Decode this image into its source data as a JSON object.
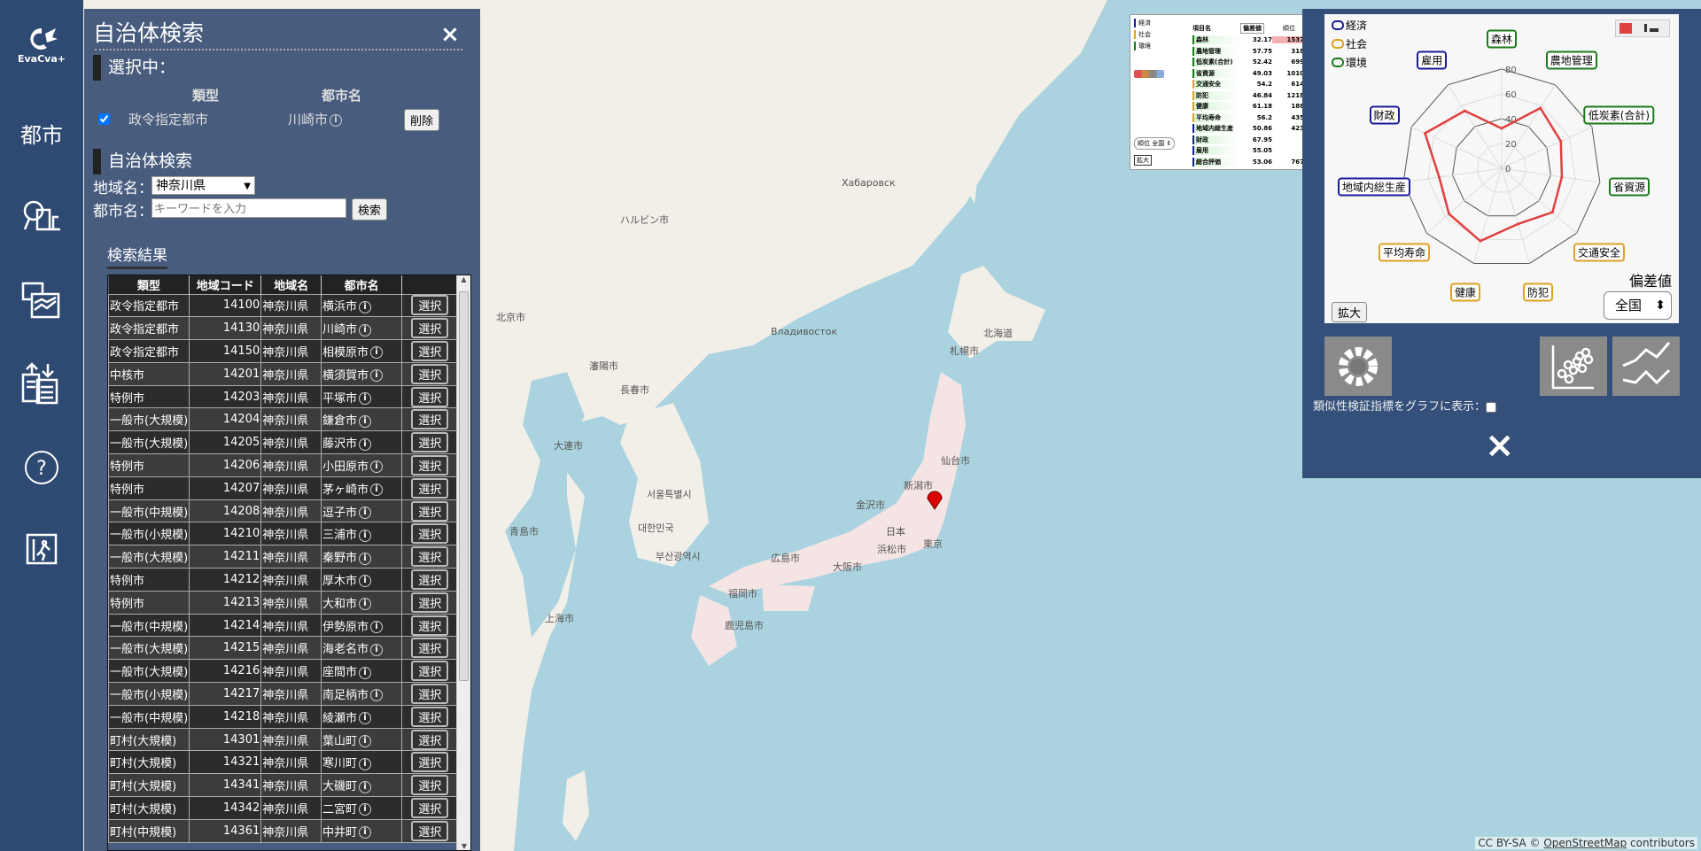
{
  "app": {
    "logo_text": "EvaCva+"
  },
  "sidebar": {
    "items": [
      {
        "label": "都市",
        "icon": "city-text"
      },
      {
        "icon": "city-search-icon"
      },
      {
        "icon": "chart-compare-icon"
      },
      {
        "icon": "import-export-icon"
      },
      {
        "icon": "help-icon"
      },
      {
        "icon": "exit-icon"
      }
    ]
  },
  "search_panel": {
    "title": "自治体検索",
    "close": "×",
    "selected": {
      "heading": "選択中：",
      "col_type": "類型",
      "col_city": "都市名",
      "type": "政令指定都市",
      "city": "川崎市",
      "remove_label": "削除",
      "checked": true
    },
    "search": {
      "heading": "自治体検索",
      "region_label": "地域名：",
      "region_value": "神奈川県",
      "city_label": "都市名：",
      "city_placeholder": "キーワードを入力",
      "search_label": "検索"
    },
    "results": {
      "heading": "検索結果",
      "columns": [
        "類型",
        "地域コード",
        "地域名",
        "都市名",
        ""
      ],
      "select_label": "選択",
      "rows": [
        [
          "政令指定都市",
          "14100",
          "神奈川県",
          "横浜市"
        ],
        [
          "政令指定都市",
          "14130",
          "神奈川県",
          "川崎市"
        ],
        [
          "政令指定都市",
          "14150",
          "神奈川県",
          "相模原市"
        ],
        [
          "中核市",
          "14201",
          "神奈川県",
          "横須賀市"
        ],
        [
          "特例市",
          "14203",
          "神奈川県",
          "平塚市"
        ],
        [
          "一般市(大規模)",
          "14204",
          "神奈川県",
          "鎌倉市"
        ],
        [
          "一般市(大規模)",
          "14205",
          "神奈川県",
          "藤沢市"
        ],
        [
          "特例市",
          "14206",
          "神奈川県",
          "小田原市"
        ],
        [
          "特例市",
          "14207",
          "神奈川県",
          "茅ヶ崎市"
        ],
        [
          "一般市(中規模)",
          "14208",
          "神奈川県",
          "逗子市"
        ],
        [
          "一般市(小規模)",
          "14210",
          "神奈川県",
          "三浦市"
        ],
        [
          "一般市(大規模)",
          "14211",
          "神奈川県",
          "秦野市"
        ],
        [
          "特例市",
          "14212",
          "神奈川県",
          "厚木市"
        ],
        [
          "特例市",
          "14213",
          "神奈川県",
          "大和市"
        ],
        [
          "一般市(中規模)",
          "14214",
          "神奈川県",
          "伊勢原市"
        ],
        [
          "一般市(大規模)",
          "14215",
          "神奈川県",
          "海老名市"
        ],
        [
          "一般市(大規模)",
          "14216",
          "神奈川県",
          "座間市"
        ],
        [
          "一般市(小規模)",
          "14217",
          "神奈川県",
          "南足柄市"
        ],
        [
          "一般市(中規模)",
          "14218",
          "神奈川県",
          "綾瀬市"
        ],
        [
          "町村(大規模)",
          "14301",
          "神奈川県",
          "葉山町"
        ],
        [
          "町村(大規模)",
          "14321",
          "神奈川県",
          "寒川町"
        ],
        [
          "町村(大規模)",
          "14341",
          "神奈川県",
          "大磯町"
        ],
        [
          "町村(大規模)",
          "14342",
          "神奈川県",
          "二宮町"
        ],
        [
          "町村(中規模)",
          "14361",
          "神奈川県",
          "中井町"
        ]
      ]
    }
  },
  "mini_table": {
    "legend": [
      "経済",
      "社会",
      "環境"
    ],
    "col_item": "項目名",
    "col_value": "偏差値",
    "col_rank": "順位",
    "rank_label": "順位",
    "scope": "全国",
    "expand": "拡大",
    "rows": [
      {
        "name": "森林",
        "value": "32.17",
        "rank": "1537",
        "cat": "env"
      },
      {
        "name": "農地管理",
        "value": "57.75",
        "rank": "318",
        "cat": "env"
      },
      {
        "name": "低炭素(合計)",
        "value": "52.42",
        "rank": "699",
        "cat": "env"
      },
      {
        "name": "省資源",
        "value": "49.03",
        "rank": "1010",
        "cat": "env"
      },
      {
        "name": "交通安全",
        "value": "54.2",
        "rank": "614",
        "cat": "soc"
      },
      {
        "name": "防犯",
        "value": "46.84",
        "rank": "1218",
        "cat": "soc"
      },
      {
        "name": "健康",
        "value": "61.18",
        "rank": "188",
        "cat": "soc"
      },
      {
        "name": "平均寿命",
        "value": "56.2",
        "rank": "435",
        "cat": "soc"
      },
      {
        "name": "地域内総生産",
        "value": "50.86",
        "rank": "423",
        "cat": "eco"
      },
      {
        "name": "財政",
        "value": "67.95",
        "rank": "",
        "cat": "eco"
      },
      {
        "name": "雇用",
        "value": "55.05",
        "rank": "",
        "cat": "eco"
      },
      {
        "name": "総合評価",
        "value": "53.06",
        "rank": "767",
        "cat": "eco"
      }
    ]
  },
  "colors": {
    "eco": "#1a1a9a",
    "soc": "#e0a020",
    "env": "#1a7a1a",
    "series": "#e04040",
    "sidebar": "#2f4a72"
  },
  "chart_data": {
    "type": "radar",
    "categories": [
      "森林",
      "農地管理",
      "低炭素(合計)",
      "省資源",
      "交通安全",
      "防犯",
      "健康",
      "平均寿命",
      "地域内総生産",
      "財政",
      "雇用"
    ],
    "category_groups": [
      "env",
      "env",
      "env",
      "env",
      "soc",
      "soc",
      "soc",
      "soc",
      "eco",
      "eco",
      "eco"
    ],
    "values": [
      32.17,
      57.75,
      52.42,
      49.03,
      54.2,
      46.84,
      61.18,
      56.2,
      50.86,
      67.95,
      55.05
    ],
    "ticks": [
      0,
      20,
      40,
      60,
      80
    ],
    "range": [
      0,
      80
    ],
    "legend": [
      {
        "name": "経済",
        "group": "eco"
      },
      {
        "name": "社会",
        "group": "soc"
      },
      {
        "name": "環境",
        "group": "env"
      }
    ],
    "legend_placement": "top-left",
    "ylabel": "偏差値",
    "scope": "全国",
    "expand": "拡大"
  },
  "right_panel": {
    "similarity_label": "類似性検証指標をグラフに表示：",
    "similarity_checked": false,
    "close": "×",
    "thumbs": [
      "settings-icon",
      "scatter-chart-icon",
      "line-chart-icon"
    ]
  },
  "map": {
    "labels": [
      "Хабаровск",
      "Владивосток",
      "札幌市",
      "北海道",
      "仙台市",
      "新潟市",
      "東京",
      "金沢市",
      "浜松市",
      "大阪市",
      "広島市",
      "福岡市",
      "鹿児島市",
      "日本",
      "서울특별시",
      "대한민국",
      "부산광역시",
      "ハルビン市",
      "長春市",
      "瀋陽市",
      "大連市",
      "上海市",
      "青島市",
      "北京市"
    ],
    "attribution": "CC BY-SA  ©",
    "attribution_link": "OpenStreetMap",
    "attribution_tail": " contributors"
  }
}
